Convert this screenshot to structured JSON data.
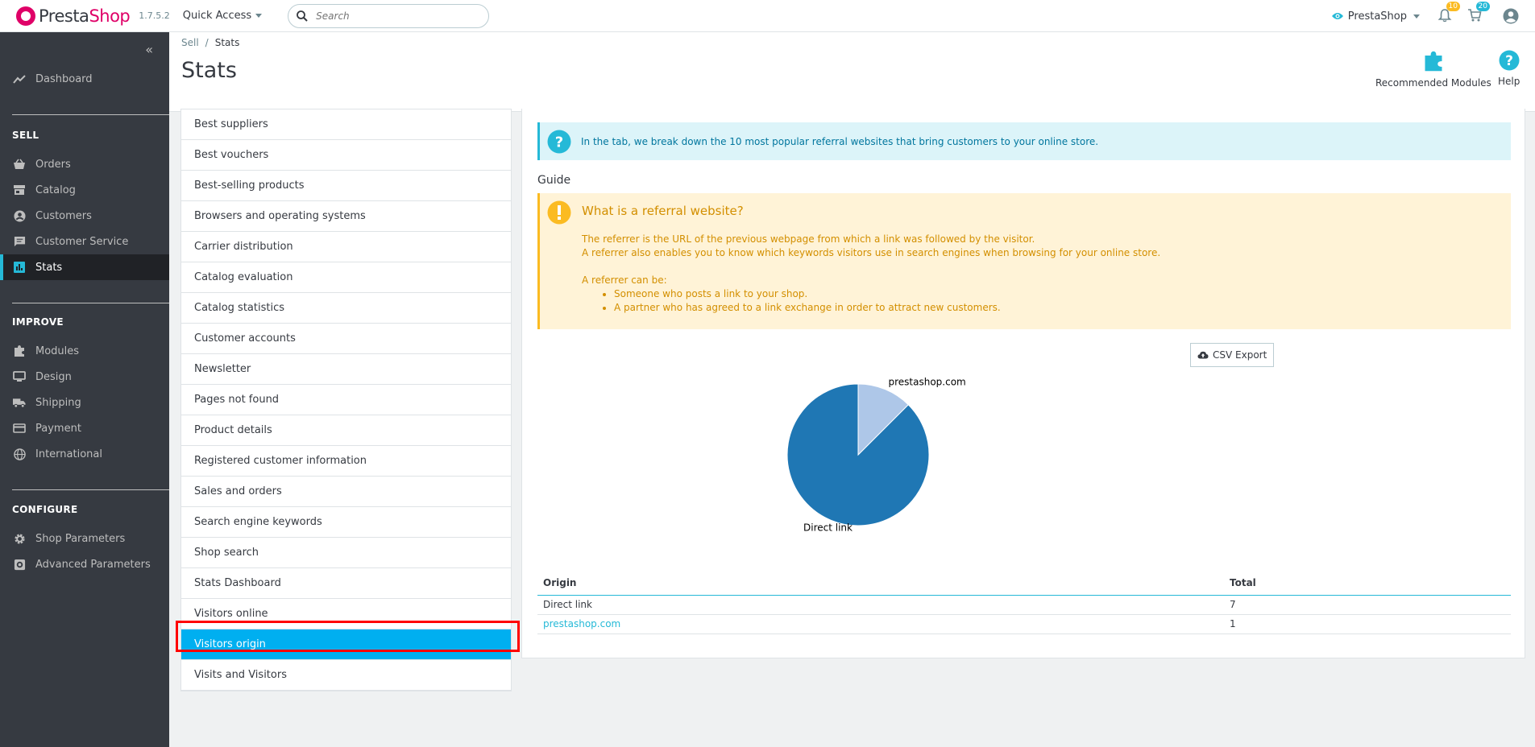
{
  "header": {
    "logo_text_1": "Presta",
    "logo_text_2": "Shop",
    "version": "1.7.5.2",
    "quick_access": "Quick Access",
    "search_placeholder": "Search",
    "shop_name": "PrestaShop",
    "notifications_count": "10",
    "orders_count": "20"
  },
  "sidebar": {
    "dashboard": "Dashboard",
    "sections": {
      "sell": "SELL",
      "improve": "IMPROVE",
      "configure": "CONFIGURE"
    },
    "sell_items": [
      "Orders",
      "Catalog",
      "Customers",
      "Customer Service",
      "Stats"
    ],
    "improve_items": [
      "Modules",
      "Design",
      "Shipping",
      "Payment",
      "International"
    ],
    "configure_items": [
      "Shop Parameters",
      "Advanced Parameters"
    ],
    "active_item": "Stats"
  },
  "page": {
    "breadcrumb": [
      "Sell",
      "Stats"
    ],
    "title": "Stats",
    "toolbar": {
      "recommended_modules": "Recommended Modules",
      "help": "Help"
    }
  },
  "stats_list": {
    "items": [
      "Best suppliers",
      "Best vouchers",
      "Best-selling products",
      "Browsers and operating systems",
      "Carrier distribution",
      "Catalog evaluation",
      "Catalog statistics",
      "Customer accounts",
      "Newsletter",
      "Pages not found",
      "Product details",
      "Registered customer information",
      "Sales and orders",
      "Search engine keywords",
      "Shop search",
      "Stats Dashboard",
      "Visitors online",
      "Visitors origin",
      "Visits and Visitors"
    ],
    "active": "Visitors origin"
  },
  "content": {
    "info_text": "In the tab, we break down the 10 most popular referral websites that bring customers to your online store.",
    "guide_title": "Guide",
    "warning": {
      "title": "What is a referral website?",
      "line1": "The referrer is the URL of the previous webpage from which a link was followed by the visitor.",
      "line2": "A referrer also enables you to know which keywords visitors use in search engines when browsing for your online store.",
      "line3": "A referrer can be:",
      "bullets": [
        "Someone who posts a link to your shop.",
        "A partner who has agreed to a link exchange in order to attract new customers."
      ]
    },
    "csv_export": "CSV Export",
    "table": {
      "headers": [
        "Origin",
        "Total"
      ],
      "rows": [
        {
          "origin": "Direct link",
          "total": "7"
        },
        {
          "origin": "prestashop.com",
          "total": "1"
        }
      ]
    }
  },
  "chart_data": {
    "type": "pie",
    "categories": [
      "Direct link",
      "prestashop.com"
    ],
    "values": [
      7,
      1
    ],
    "colors": [
      "#1f77b4",
      "#aec7e8"
    ]
  }
}
